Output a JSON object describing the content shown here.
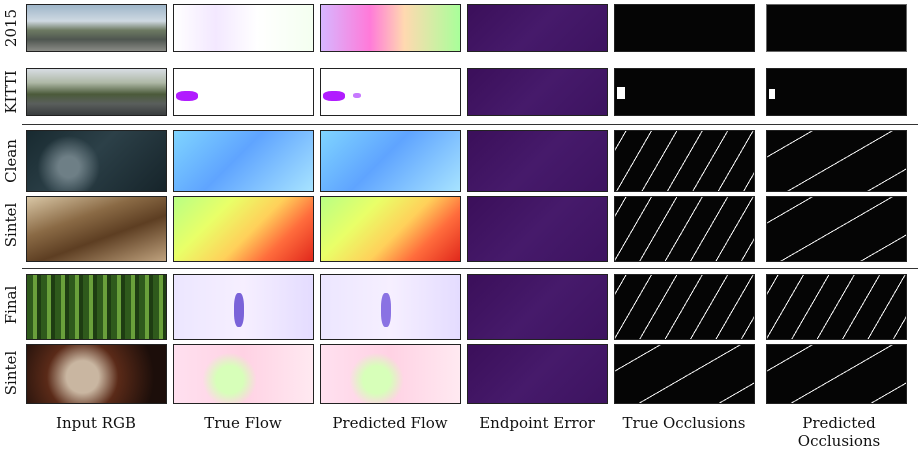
{
  "row_labels": [
    "2015",
    "KITTI",
    "Clean",
    "Sintel",
    "Final",
    "Sintel"
  ],
  "column_labels": [
    "Input RGB",
    "True Flow",
    "Predicted Flow",
    "Endpoint Error",
    "True Occlusions",
    "Predicted Occlusions"
  ]
}
